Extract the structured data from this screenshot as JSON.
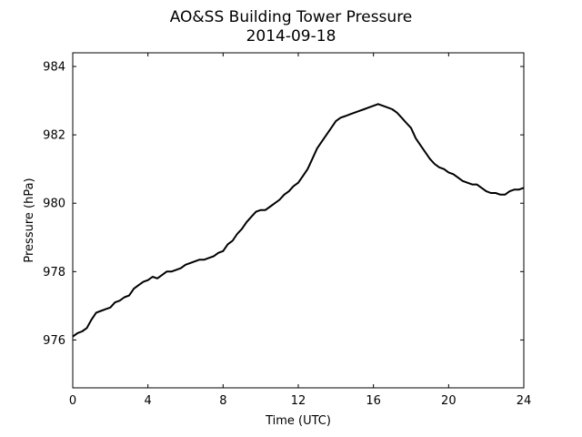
{
  "chart_data": {
    "type": "line",
    "title": "AO&SS Building Tower Pressure",
    "subtitle": "2014-09-18",
    "xlabel": "Time (UTC)",
    "ylabel": "Pressure (hPa)",
    "xlim": [
      0,
      24
    ],
    "ylim": [
      974.6,
      984.4
    ],
    "xticks": [
      0,
      4,
      8,
      12,
      16,
      20,
      24
    ],
    "yticks": [
      976,
      978,
      980,
      982,
      984
    ],
    "grid": false,
    "line_color": "#000000",
    "series": [
      {
        "x": [
          0,
          0.25,
          0.5,
          0.75,
          1,
          1.25,
          1.5,
          1.75,
          2,
          2.25,
          2.5,
          2.75,
          3,
          3.25,
          3.5,
          3.75,
          4,
          4.25,
          4.5,
          4.75,
          5,
          5.25,
          5.5,
          5.75,
          6,
          6.25,
          6.5,
          6.75,
          7,
          7.25,
          7.5,
          7.75,
          8,
          8.25,
          8.5,
          8.75,
          9,
          9.25,
          9.5,
          9.75,
          10,
          10.25,
          10.5,
          10.75,
          11,
          11.25,
          11.5,
          11.75,
          12,
          12.25,
          12.5,
          12.75,
          13,
          13.25,
          13.5,
          13.75,
          14,
          14.25,
          14.5,
          14.75,
          15,
          15.25,
          15.5,
          15.75,
          16,
          16.25,
          16.5,
          16.75,
          17,
          17.25,
          17.5,
          17.75,
          18,
          18.25,
          18.5,
          18.75,
          19,
          19.25,
          19.5,
          19.75,
          20,
          20.25,
          20.5,
          20.75,
          21,
          21.25,
          21.5,
          21.75,
          22,
          22.25,
          22.5,
          22.75,
          23,
          23.25,
          23.5,
          23.75,
          24
        ],
        "y": [
          976.1,
          976.2,
          976.25,
          976.35,
          976.6,
          976.8,
          976.85,
          976.9,
          976.95,
          977.1,
          977.15,
          977.25,
          977.3,
          977.5,
          977.6,
          977.7,
          977.75,
          977.85,
          977.8,
          977.9,
          978.0,
          978.0,
          978.05,
          978.1,
          978.2,
          978.25,
          978.3,
          978.35,
          978.35,
          978.4,
          978.45,
          978.55,
          978.6,
          978.8,
          978.9,
          979.1,
          979.25,
          979.45,
          979.6,
          979.75,
          979.8,
          979.8,
          979.9,
          980.0,
          980.1,
          980.25,
          980.35,
          980.5,
          980.6,
          980.8,
          981.0,
          981.3,
          981.6,
          981.8,
          982.0,
          982.2,
          982.4,
          982.5,
          982.55,
          982.6,
          982.65,
          982.7,
          982.75,
          982.8,
          982.85,
          982.9,
          982.85,
          982.8,
          982.75,
          982.65,
          982.5,
          982.35,
          982.2,
          981.9,
          981.7,
          981.5,
          981.3,
          981.15,
          981.05,
          981.0,
          980.9,
          980.85,
          980.75,
          980.65,
          980.6,
          980.55,
          980.55,
          980.45,
          980.35,
          980.3,
          980.3,
          980.25,
          980.25,
          980.35,
          980.4,
          980.4,
          980.45
        ]
      }
    ]
  }
}
